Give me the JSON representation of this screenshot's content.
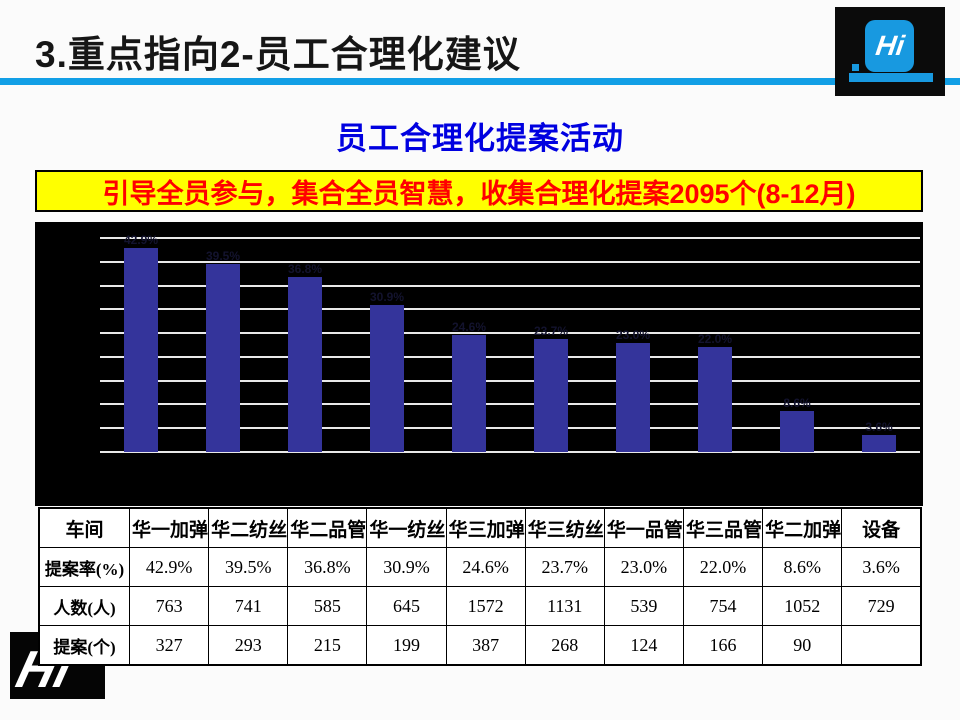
{
  "header": {
    "title": "3.重点指向2-员工合理化建议"
  },
  "brand": {
    "logo_text": "Hi",
    "accent_color": "#129FE6"
  },
  "subtitle": "员工合理化提案活动",
  "banner": {
    "text": "引导全员参与，集合全员智慧，收集合理化提案2095个(8-12月)",
    "bg_color": "#FFFF00",
    "text_color": "#FF0000"
  },
  "chart_data": {
    "type": "bar",
    "categories": [
      "华一加弹",
      "华二纺丝",
      "华二品管",
      "华一纺丝",
      "华三加弹",
      "华三纺丝",
      "华一品管",
      "华三品管",
      "华二加弹",
      "设备"
    ],
    "values": [
      42.9,
      39.5,
      36.8,
      30.9,
      24.6,
      23.7,
      23.0,
      22.0,
      8.6,
      3.6
    ],
    "data_labels": [
      "42.9%",
      "39.5%",
      "36.8%",
      "30.9%",
      "24.6%",
      "23.7%",
      "23.0%",
      "22.0%",
      "8.6%",
      "3.6%"
    ],
    "title": "",
    "xlabel": "",
    "ylabel": "",
    "ylim": [
      0,
      45
    ],
    "grid_step": 5,
    "grid": true,
    "legend": false,
    "background_color": "#000000",
    "bar_color": "#34349B",
    "gridline_color": "#E9E9E9",
    "data_label_color": "#13132E"
  },
  "table": {
    "rows": [
      [
        "车间",
        "华一加弹",
        "华二纺丝",
        "华二品管",
        "华一纺丝",
        "华三加弹",
        "华三纺丝",
        "华一品管",
        "华三品管",
        "华二加弹",
        "设备"
      ],
      [
        "提案率(%)",
        "42.9%",
        "39.5%",
        "36.8%",
        "30.9%",
        "24.6%",
        "23.7%",
        "23.0%",
        "22.0%",
        "8.6%",
        "3.6%"
      ],
      [
        "人数(人)",
        "763",
        "741",
        "585",
        "645",
        "1572",
        "1131",
        "539",
        "754",
        "1052",
        "729"
      ],
      [
        "提案(个)",
        "327",
        "293",
        "215",
        "199",
        "387",
        "268",
        "124",
        "166",
        "90",
        ""
      ]
    ]
  },
  "footer": {
    "logo_text": "Hi"
  }
}
